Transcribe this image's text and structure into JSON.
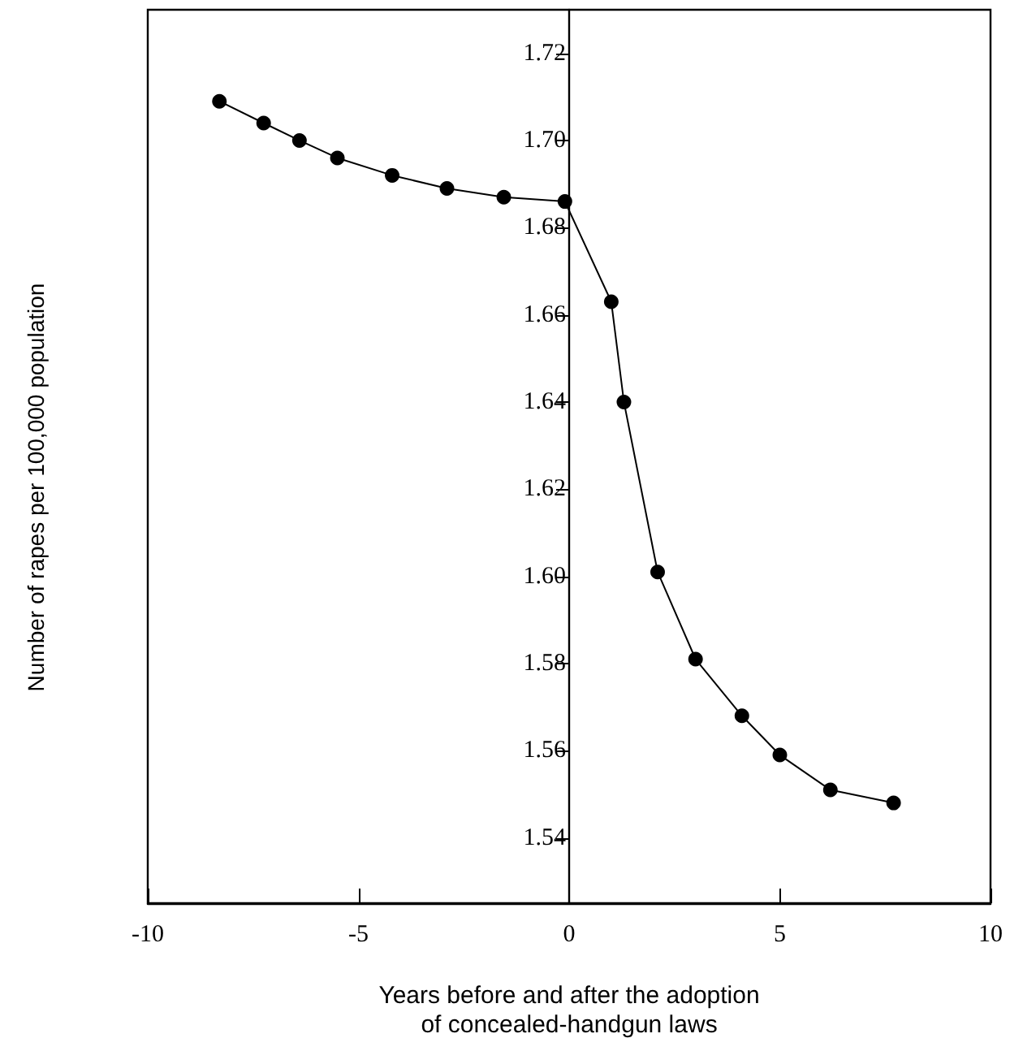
{
  "chart_data": {
    "type": "line",
    "xlabel": "Years before and after the adoption\nof concealed-handgun laws",
    "ylabel": "Number of rapes per 100,000 population",
    "x": [
      -8.3,
      -7.25,
      -6.4,
      -5.5,
      -4.2,
      -2.9,
      -1.55,
      -0.1,
      1.0,
      1.3,
      2.1,
      3.0,
      4.1,
      5.0,
      6.2,
      7.7
    ],
    "series": [
      {
        "color": "#000000",
        "values": [
          1.709,
          1.704,
          1.7,
          1.696,
          1.692,
          1.689,
          1.687,
          1.686,
          1.663,
          1.64,
          1.601,
          1.581,
          1.568,
          1.559,
          1.551,
          1.548
        ]
      }
    ],
    "xlim": [
      -10,
      10
    ],
    "xticks": [
      -10,
      -5,
      0,
      5,
      10
    ],
    "ylim": [
      1.525,
      1.73
    ],
    "yticks": [
      {
        "value": 1.54,
        "label": "1.54"
      },
      {
        "value": 1.56,
        "label": "1.56"
      },
      {
        "value": 1.58,
        "label": "1.58"
      },
      {
        "value": 1.6,
        "label": "1.60"
      },
      {
        "value": 1.62,
        "label": "1.62"
      },
      {
        "value": 1.64,
        "label": "1.64"
      },
      {
        "value": 1.66,
        "label": "1.66"
      },
      {
        "value": 1.68,
        "label": "1.68"
      },
      {
        "value": 1.7,
        "label": "1.70"
      },
      {
        "value": 1.72,
        "label": "1.72"
      }
    ],
    "marker": "circle",
    "line_style": "solid"
  }
}
